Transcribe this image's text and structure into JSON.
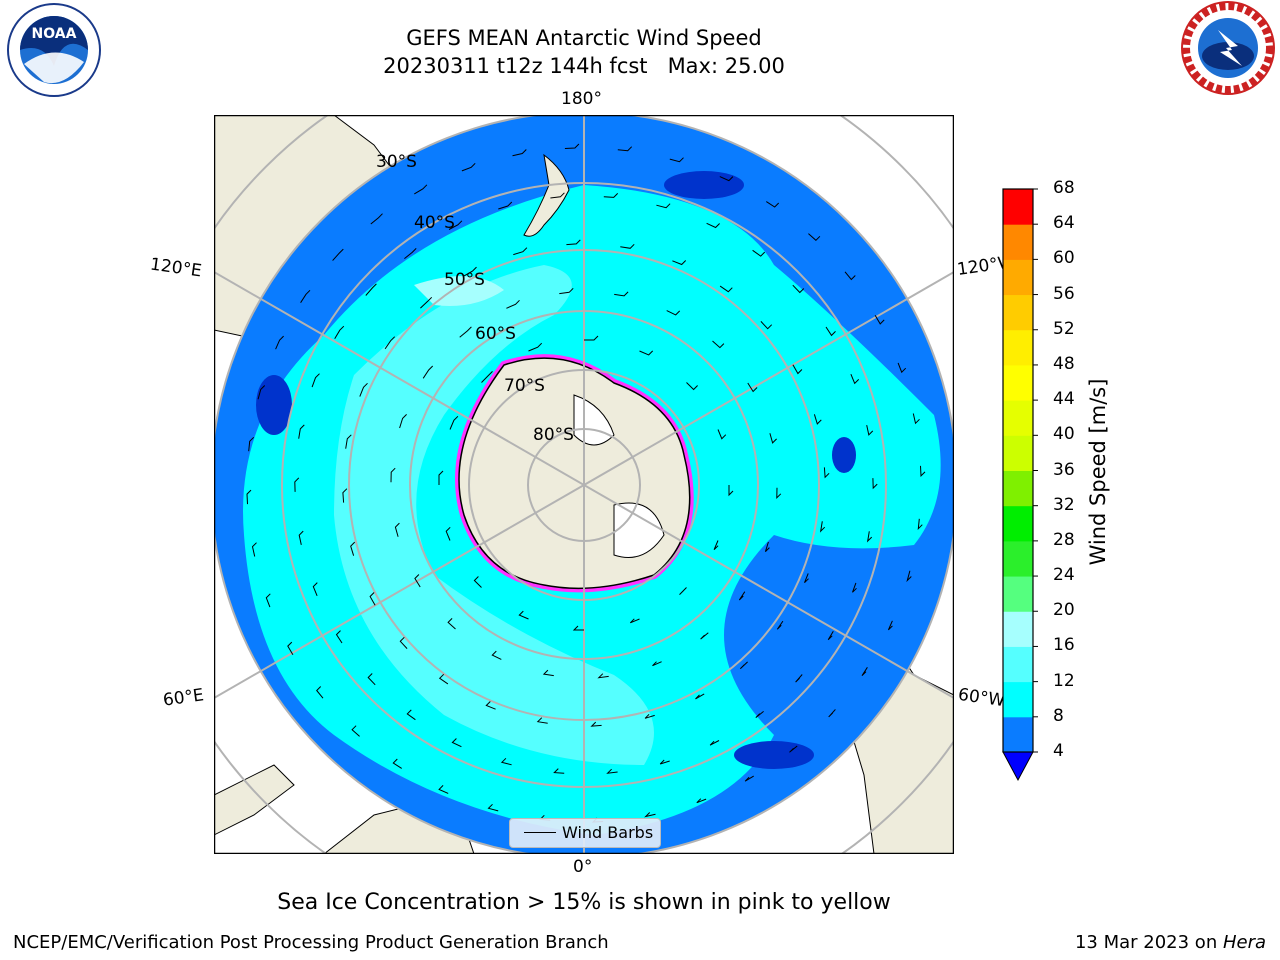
{
  "header": {
    "title_line1": "GEFS MEAN Antarctic Wind Speed",
    "title_line2": "20230311 t12z 144h fcst   Max: 25.00"
  },
  "logos": {
    "left": "NOAA",
    "right": "NATIONAL WEATHER SERVICE"
  },
  "map": {
    "projection": "south polar stereographic",
    "lon_labels": {
      "top": "180°",
      "bottom": "0°",
      "left_upper": "120°E",
      "left_lower": "60°E",
      "right_upper": "120°W",
      "right_lower": "60°W"
    },
    "lat_labels": [
      "30°S",
      "40°S",
      "50°S",
      "60°S",
      "70°S",
      "80°S"
    ],
    "colors": {
      "land": "#eeecdc",
      "wind_4_8": "#0a7cff",
      "wind_8_12": "#00ffff",
      "wind_12_16": "#55ffff",
      "wind_16_20": "#a6fffe",
      "wind_lt_4": "#0033cc",
      "sea_ice": "#ff33ff",
      "border": "#000000",
      "grid": "#b3b3b3"
    }
  },
  "legend": {
    "label": "Wind Barbs"
  },
  "colorbar": {
    "label": "Wind Speed [m/s]",
    "ticks": [
      "4",
      "8",
      "12",
      "16",
      "20",
      "24",
      "28",
      "32",
      "36",
      "40",
      "44",
      "48",
      "52",
      "56",
      "60",
      "64",
      "68"
    ],
    "colors": [
      "#0a7cff",
      "#00ffff",
      "#55ffff",
      "#a6fffe",
      "#55ff7f",
      "#2bef2b",
      "#00ee00",
      "#7ff000",
      "#ccff00",
      "#e5ff00",
      "#ffff00",
      "#ffee00",
      "#ffcc00",
      "#ffaa00",
      "#ff8800",
      "#ff4400"
    ],
    "under_color": "#0000ff",
    "top_color": "#ff0000"
  },
  "caption": "Sea Ice Concentration > 15% is shown in pink to yellow",
  "footer": {
    "left": "NCEP/EMC/Verification Post Processing Product Generation Branch",
    "right_date": "13 Mar 2023 on ",
    "right_host": "Hera"
  }
}
